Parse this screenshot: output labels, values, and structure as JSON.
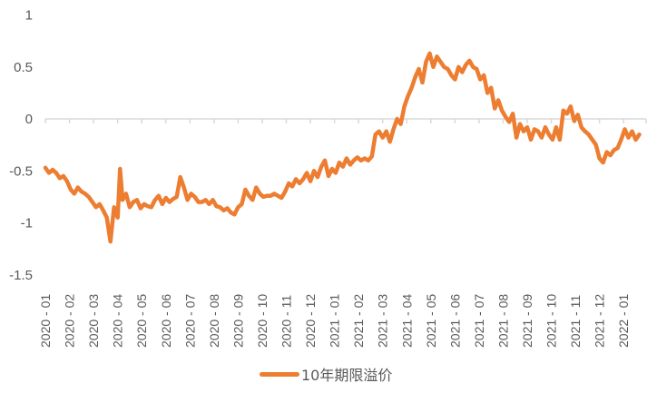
{
  "chart_data": {
    "type": "line",
    "title": "",
    "xlabel": "",
    "ylabel": "",
    "ylim": [
      -1.5,
      1
    ],
    "yticks": [
      "1",
      "0.5",
      "0",
      "-0.5",
      "-1",
      "-1.5"
    ],
    "grid": false,
    "legend_position": "bottom",
    "line_color": "#ED7D31",
    "axis_color": "#D9D9D9",
    "categories": [
      "2020-01",
      "2020-02",
      "2020-03",
      "2020-04",
      "2020-05",
      "2020-06",
      "2020-07",
      "2020-08",
      "2020-09",
      "2020-10",
      "2020-11",
      "2020-12",
      "2021-01",
      "2021-02",
      "2021-03",
      "2021-04",
      "2021-05",
      "2021-06",
      "2021-07",
      "2021-08",
      "2021-09",
      "2021-10",
      "2021-11",
      "2021-12",
      "2022-01"
    ],
    "series": [
      {
        "name": "10年期限溢价",
        "x_month_index": [
          0,
          0.15,
          0.3,
          0.45,
          0.6,
          0.75,
          0.9,
          1.05,
          1.2,
          1.35,
          1.5,
          1.65,
          1.8,
          1.95,
          2.1,
          2.25,
          2.4,
          2.55,
          2.7,
          2.85,
          3.0,
          3.1,
          3.2,
          3.35,
          3.5,
          3.65,
          3.8,
          3.95,
          4.1,
          4.25,
          4.4,
          4.55,
          4.7,
          4.85,
          5.0,
          5.15,
          5.3,
          5.45,
          5.6,
          5.75,
          5.9,
          6.05,
          6.2,
          6.35,
          6.5,
          6.65,
          6.8,
          6.95,
          7.1,
          7.25,
          7.4,
          7.55,
          7.7,
          7.85,
          8.0,
          8.15,
          8.3,
          8.45,
          8.6,
          8.75,
          8.9,
          9.05,
          9.2,
          9.35,
          9.5,
          9.65,
          9.8,
          9.95,
          10.1,
          10.25,
          10.4,
          10.55,
          10.7,
          10.85,
          11.0,
          11.15,
          11.3,
          11.45,
          11.6,
          11.75,
          11.9,
          12.05,
          12.2,
          12.35,
          12.5,
          12.65,
          12.8,
          12.95,
          13.1,
          13.25,
          13.4,
          13.55,
          13.7,
          13.85,
          14.0,
          14.15,
          14.3,
          14.45,
          14.6,
          14.75,
          14.9,
          15.05,
          15.2,
          15.35,
          15.5,
          15.65,
          15.8,
          15.95,
          16.1,
          16.25,
          16.4,
          16.55,
          16.7,
          16.85,
          17.0,
          17.15,
          17.3,
          17.45,
          17.6,
          17.75,
          17.9,
          18.05,
          18.2,
          18.35,
          18.5,
          18.65,
          18.8,
          18.95,
          19.1,
          19.25,
          19.4,
          19.55,
          19.7,
          19.85,
          20.0,
          20.15,
          20.3,
          20.45,
          20.6,
          20.75,
          20.9,
          21.05,
          21.2,
          21.35,
          21.5,
          21.65,
          21.8,
          21.95,
          22.1,
          22.25,
          22.4,
          22.55,
          22.7,
          22.85,
          23.0,
          23.15,
          23.3,
          23.45,
          23.6,
          23.75,
          23.9,
          24.05,
          24.2,
          24.35,
          24.5,
          24.65,
          24.8
        ],
        "values": [
          -0.47,
          -0.52,
          -0.49,
          -0.52,
          -0.57,
          -0.55,
          -0.6,
          -0.68,
          -0.72,
          -0.66,
          -0.7,
          -0.72,
          -0.75,
          -0.8,
          -0.85,
          -0.82,
          -0.88,
          -0.95,
          -1.18,
          -0.85,
          -0.95,
          -0.48,
          -0.78,
          -0.72,
          -0.85,
          -0.8,
          -0.78,
          -0.86,
          -0.82,
          -0.84,
          -0.85,
          -0.78,
          -0.74,
          -0.82,
          -0.76,
          -0.8,
          -0.77,
          -0.75,
          -0.56,
          -0.66,
          -0.78,
          -0.72,
          -0.75,
          -0.8,
          -0.8,
          -0.78,
          -0.82,
          -0.78,
          -0.84,
          -0.85,
          -0.88,
          -0.86,
          -0.9,
          -0.92,
          -0.85,
          -0.82,
          -0.68,
          -0.74,
          -0.78,
          -0.66,
          -0.72,
          -0.75,
          -0.74,
          -0.74,
          -0.72,
          -0.74,
          -0.76,
          -0.7,
          -0.62,
          -0.65,
          -0.58,
          -0.62,
          -0.58,
          -0.52,
          -0.6,
          -0.5,
          -0.56,
          -0.46,
          -0.4,
          -0.55,
          -0.48,
          -0.52,
          -0.42,
          -0.46,
          -0.38,
          -0.44,
          -0.4,
          -0.37,
          -0.4,
          -0.38,
          -0.4,
          -0.36,
          -0.15,
          -0.12,
          -0.18,
          -0.12,
          -0.22,
          -0.1,
          0.0,
          -0.05,
          0.12,
          0.22,
          0.3,
          0.4,
          0.48,
          0.35,
          0.55,
          0.63,
          0.5,
          0.6,
          0.55,
          0.5,
          0.48,
          0.42,
          0.38,
          0.5,
          0.45,
          0.52,
          0.56,
          0.5,
          0.48,
          0.38,
          0.42,
          0.25,
          0.3,
          0.1,
          0.18,
          0.08,
          0.02,
          -0.03,
          0.05,
          -0.18,
          -0.05,
          -0.12,
          -0.08,
          -0.2,
          -0.1,
          -0.12,
          -0.18,
          -0.08,
          -0.15,
          -0.2,
          -0.08,
          -0.2,
          0.08,
          0.05,
          0.12,
          -0.02,
          0.04,
          -0.08,
          -0.12,
          -0.15,
          -0.2,
          -0.25,
          -0.38,
          -0.42,
          -0.32,
          -0.35,
          -0.3,
          -0.28,
          -0.2,
          -0.1,
          -0.18,
          -0.12,
          -0.2,
          -0.15
        ]
      }
    ]
  },
  "legend": {
    "label": "10年期限溢价"
  }
}
